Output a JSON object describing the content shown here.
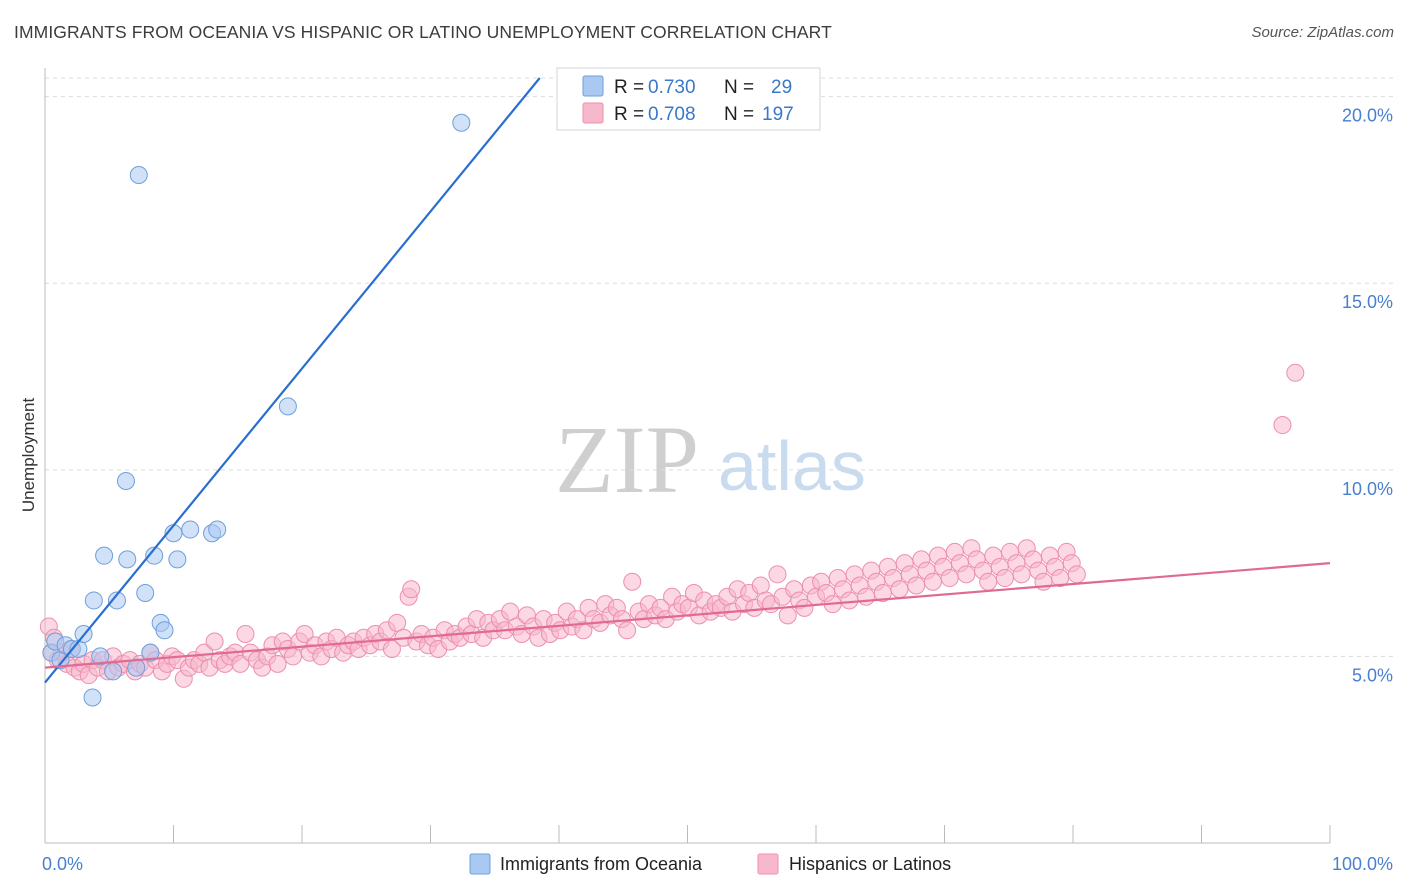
{
  "header": {
    "title": "IMMIGRANTS FROM OCEANIA VS HISPANIC OR LATINO UNEMPLOYMENT CORRELATION CHART",
    "source": "Source: ZipAtlas.com"
  },
  "watermark": {
    "zip": "ZIP",
    "atlas": "atlas"
  },
  "stats_legend": {
    "rows": [
      {
        "r_label": "R =",
        "r_value": "0.730",
        "n_label": "N =",
        "n_value": "29",
        "color": "#a9c9f2"
      },
      {
        "r_label": "R =",
        "r_value": "0.708",
        "n_label": "N =",
        "n_value": "197",
        "color": "#f7b8cc"
      }
    ]
  },
  "chart_data": {
    "type": "scatter",
    "title": "IMMIGRANTS FROM OCEANIA VS HISPANIC OR LATINO UNEMPLOYMENT CORRELATION CHART",
    "ylabel": "Unemployment",
    "xlim": [
      0,
      100
    ],
    "ylim": [
      0,
      20.5
    ],
    "x_tick_labels": [
      "0.0%",
      "100.0%"
    ],
    "y_ticks": [
      5,
      10,
      15,
      20
    ],
    "y_tick_labels": [
      "5.0%",
      "10.0%",
      "15.0%",
      "20.0%"
    ],
    "grid": "horizontal dashed",
    "legend_position": "bottom",
    "series": [
      {
        "name": "Immigrants from Oceania",
        "color": "#a9c9f2",
        "stroke": "#6f9fdc",
        "line_color": "#2a6fd0",
        "trend": {
          "x": [
            0,
            38.5
          ],
          "y": [
            4.3,
            20.5
          ]
        },
        "points": [
          [
            0.5,
            5.1
          ],
          [
            0.8,
            5.4
          ],
          [
            1.2,
            4.9
          ],
          [
            1.6,
            5.3
          ],
          [
            2.1,
            5.2
          ],
          [
            2.6,
            5.2
          ],
          [
            3.0,
            5.6
          ],
          [
            3.7,
            3.9
          ],
          [
            3.8,
            6.5
          ],
          [
            4.3,
            5.0
          ],
          [
            4.6,
            7.7
          ],
          [
            5.3,
            4.6
          ],
          [
            5.6,
            6.5
          ],
          [
            6.4,
            7.6
          ],
          [
            6.3,
            9.7
          ],
          [
            7.1,
            4.7
          ],
          [
            7.3,
            17.9
          ],
          [
            7.8,
            6.7
          ],
          [
            8.2,
            5.1
          ],
          [
            8.5,
            7.7
          ],
          [
            9.0,
            5.9
          ],
          [
            9.3,
            5.7
          ],
          [
            10.0,
            8.3
          ],
          [
            10.3,
            7.6
          ],
          [
            11.3,
            8.4
          ],
          [
            13.0,
            8.3
          ],
          [
            13.4,
            8.4
          ],
          [
            18.9,
            11.7
          ],
          [
            32.4,
            19.3
          ]
        ]
      },
      {
        "name": "Hispanics or Latinos",
        "color": "#f7b8cc",
        "stroke": "#ec8fae",
        "line_color": "#e06a94",
        "trend": {
          "x": [
            0,
            100
          ],
          "y": [
            4.7,
            7.5
          ]
        },
        "points": [
          [
            0.3,
            5.8
          ],
          [
            0.5,
            5.1
          ],
          [
            0.7,
            5.5
          ],
          [
            1.0,
            4.9
          ],
          [
            1.3,
            5.1
          ],
          [
            1.7,
            4.8
          ],
          [
            2.0,
            5.2
          ],
          [
            2.3,
            4.7
          ],
          [
            2.7,
            4.6
          ],
          [
            3.0,
            4.8
          ],
          [
            3.4,
            4.5
          ],
          [
            3.7,
            4.9
          ],
          [
            4.1,
            4.7
          ],
          [
            4.5,
            4.9
          ],
          [
            4.9,
            4.6
          ],
          [
            5.3,
            5.0
          ],
          [
            5.7,
            4.7
          ],
          [
            6.1,
            4.8
          ],
          [
            6.6,
            4.9
          ],
          [
            7.0,
            4.6
          ],
          [
            7.4,
            4.8
          ],
          [
            7.8,
            4.7
          ],
          [
            8.2,
            5.1
          ],
          [
            8.6,
            4.9
          ],
          [
            9.1,
            4.6
          ],
          [
            9.5,
            4.8
          ],
          [
            9.9,
            5.0
          ],
          [
            10.3,
            4.9
          ],
          [
            10.8,
            4.4
          ],
          [
            11.2,
            4.7
          ],
          [
            11.6,
            4.9
          ],
          [
            12.0,
            4.8
          ],
          [
            12.4,
            5.1
          ],
          [
            12.8,
            4.7
          ],
          [
            13.2,
            5.4
          ],
          [
            13.6,
            4.9
          ],
          [
            14.0,
            4.8
          ],
          [
            14.4,
            5.0
          ],
          [
            14.8,
            5.1
          ],
          [
            15.2,
            4.8
          ],
          [
            15.6,
            5.6
          ],
          [
            16.0,
            5.1
          ],
          [
            16.5,
            4.9
          ],
          [
            16.9,
            4.7
          ],
          [
            17.3,
            5.0
          ],
          [
            17.7,
            5.3
          ],
          [
            18.1,
            4.8
          ],
          [
            18.5,
            5.4
          ],
          [
            18.9,
            5.2
          ],
          [
            19.3,
            5.0
          ],
          [
            19.8,
            5.4
          ],
          [
            20.2,
            5.6
          ],
          [
            20.6,
            5.1
          ],
          [
            21.0,
            5.3
          ],
          [
            21.5,
            5.0
          ],
          [
            21.9,
            5.4
          ],
          [
            22.3,
            5.2
          ],
          [
            22.7,
            5.5
          ],
          [
            23.2,
            5.1
          ],
          [
            23.6,
            5.3
          ],
          [
            24.0,
            5.4
          ],
          [
            24.4,
            5.2
          ],
          [
            24.8,
            5.5
          ],
          [
            25.3,
            5.3
          ],
          [
            25.7,
            5.6
          ],
          [
            26.1,
            5.4
          ],
          [
            26.6,
            5.7
          ],
          [
            27.0,
            5.2
          ],
          [
            27.4,
            5.9
          ],
          [
            27.9,
            5.5
          ],
          [
            28.3,
            6.6
          ],
          [
            28.5,
            6.8
          ],
          [
            28.9,
            5.4
          ],
          [
            29.3,
            5.6
          ],
          [
            29.8,
            5.3
          ],
          [
            30.2,
            5.5
          ],
          [
            30.6,
            5.2
          ],
          [
            31.1,
            5.7
          ],
          [
            31.5,
            5.4
          ],
          [
            31.9,
            5.6
          ],
          [
            32.3,
            5.5
          ],
          [
            32.8,
            5.8
          ],
          [
            33.2,
            5.6
          ],
          [
            33.6,
            6.0
          ],
          [
            34.1,
            5.5
          ],
          [
            34.5,
            5.9
          ],
          [
            34.9,
            5.7
          ],
          [
            35.4,
            6.0
          ],
          [
            35.8,
            5.7
          ],
          [
            36.2,
            6.2
          ],
          [
            36.7,
            5.8
          ],
          [
            37.1,
            5.6
          ],
          [
            37.5,
            6.1
          ],
          [
            38.0,
            5.8
          ],
          [
            38.4,
            5.5
          ],
          [
            38.8,
            6.0
          ],
          [
            39.3,
            5.6
          ],
          [
            39.7,
            5.9
          ],
          [
            40.1,
            5.7
          ],
          [
            40.6,
            6.2
          ],
          [
            41.0,
            5.8
          ],
          [
            41.4,
            6.0
          ],
          [
            41.9,
            5.7
          ],
          [
            42.3,
            6.3
          ],
          [
            42.7,
            6.0
          ],
          [
            43.2,
            5.9
          ],
          [
            43.6,
            6.4
          ],
          [
            44.0,
            6.1
          ],
          [
            44.5,
            6.3
          ],
          [
            44.9,
            6.0
          ],
          [
            45.3,
            5.7
          ],
          [
            45.7,
            7.0
          ],
          [
            46.2,
            6.2
          ],
          [
            46.6,
            6.0
          ],
          [
            47.0,
            6.4
          ],
          [
            47.5,
            6.1
          ],
          [
            47.9,
            6.3
          ],
          [
            48.3,
            6.0
          ],
          [
            48.8,
            6.6
          ],
          [
            49.2,
            6.2
          ],
          [
            49.6,
            6.4
          ],
          [
            50.1,
            6.3
          ],
          [
            50.5,
            6.7
          ],
          [
            50.9,
            6.1
          ],
          [
            51.3,
            6.5
          ],
          [
            51.8,
            6.2
          ],
          [
            52.2,
            6.4
          ],
          [
            52.6,
            6.3
          ],
          [
            53.1,
            6.6
          ],
          [
            53.5,
            6.2
          ],
          [
            53.9,
            6.8
          ],
          [
            54.4,
            6.4
          ],
          [
            54.8,
            6.7
          ],
          [
            55.2,
            6.3
          ],
          [
            55.7,
            6.9
          ],
          [
            56.1,
            6.5
          ],
          [
            56.5,
            6.4
          ],
          [
            57.0,
            7.2
          ],
          [
            57.4,
            6.6
          ],
          [
            57.8,
            6.1
          ],
          [
            58.3,
            6.8
          ],
          [
            58.7,
            6.5
          ],
          [
            59.1,
            6.3
          ],
          [
            59.6,
            6.9
          ],
          [
            60.0,
            6.6
          ],
          [
            60.4,
            7.0
          ],
          [
            60.8,
            6.7
          ],
          [
            61.3,
            6.4
          ],
          [
            61.7,
            7.1
          ],
          [
            62.1,
            6.8
          ],
          [
            62.6,
            6.5
          ],
          [
            63.0,
            7.2
          ],
          [
            63.4,
            6.9
          ],
          [
            63.9,
            6.6
          ],
          [
            64.3,
            7.3
          ],
          [
            64.7,
            7.0
          ],
          [
            65.2,
            6.7
          ],
          [
            65.6,
            7.4
          ],
          [
            66.0,
            7.1
          ],
          [
            66.5,
            6.8
          ],
          [
            66.9,
            7.5
          ],
          [
            67.3,
            7.2
          ],
          [
            67.8,
            6.9
          ],
          [
            68.2,
            7.6
          ],
          [
            68.6,
            7.3
          ],
          [
            69.1,
            7.0
          ],
          [
            69.5,
            7.7
          ],
          [
            69.9,
            7.4
          ],
          [
            70.4,
            7.1
          ],
          [
            70.8,
            7.8
          ],
          [
            71.2,
            7.5
          ],
          [
            71.7,
            7.2
          ],
          [
            72.1,
            7.9
          ],
          [
            72.5,
            7.6
          ],
          [
            73.0,
            7.3
          ],
          [
            73.4,
            7.0
          ],
          [
            73.8,
            7.7
          ],
          [
            74.3,
            7.4
          ],
          [
            74.7,
            7.1
          ],
          [
            75.1,
            7.8
          ],
          [
            75.6,
            7.5
          ],
          [
            76.0,
            7.2
          ],
          [
            76.4,
            7.9
          ],
          [
            76.9,
            7.6
          ],
          [
            77.3,
            7.3
          ],
          [
            77.7,
            7.0
          ],
          [
            78.2,
            7.7
          ],
          [
            78.6,
            7.4
          ],
          [
            79.0,
            7.1
          ],
          [
            79.5,
            7.8
          ],
          [
            79.9,
            7.5
          ],
          [
            80.3,
            7.2
          ],
          [
            97.3,
            12.6
          ],
          [
            96.3,
            11.2
          ]
        ]
      }
    ]
  },
  "bottom_legend": [
    {
      "label": "Immigrants from Oceania",
      "color": "#a9c9f2",
      "stroke": "#6f9fdc"
    },
    {
      "label": "Hispanics or Latinos",
      "color": "#f7b8cc",
      "stroke": "#ec8fae"
    }
  ]
}
